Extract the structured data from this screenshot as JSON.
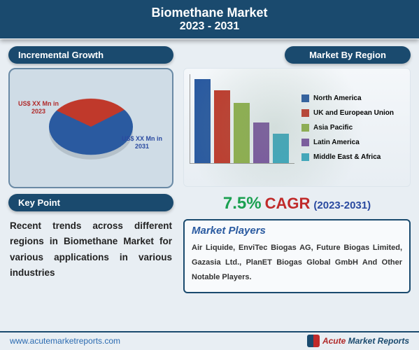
{
  "header": {
    "title": "Biomethane Market",
    "years": "2023 - 2031"
  },
  "left": {
    "growth_banner": "Incremental Growth",
    "pie": {
      "slice_a": {
        "label": "US$ XX Mn in 2023",
        "color": "#c0392b",
        "pct": 30
      },
      "slice_b": {
        "label": "US$ XX Mn in 2031",
        "color": "#2a5aa0",
        "pct": 70
      },
      "rotation_deg": -55
    },
    "keypoint_banner": "Key Point",
    "keypoint_text": "Recent trends across different regions in Biomethane Market for various applications in various industries"
  },
  "right": {
    "region_banner": "Market By Region",
    "chart": {
      "type": "bar",
      "bars": [
        {
          "label": "North America",
          "value": 120,
          "color": "#2a5aa0"
        },
        {
          "label": "UK and European Union",
          "value": 104,
          "color": "#c0392b"
        },
        {
          "label": "Asia Pacific",
          "value": 86,
          "color": "#8fb04a"
        },
        {
          "label": "Latin America",
          "value": 58,
          "color": "#7a52a0"
        },
        {
          "label": "Middle East & Africa",
          "value": 42,
          "color": "#3aa8c0"
        }
      ],
      "legend_colors": {
        "na": "#2a5aa0",
        "eu": "#c0392b",
        "ap": "#8fb04a",
        "la": "#7a52a0",
        "me": "#3aa8c0"
      }
    },
    "cagr": {
      "value": "7.5%",
      "word": "CAGR",
      "years": "(2023-2031)"
    },
    "players": {
      "title": "Market Players",
      "body": "Air Liquide, EnviTec Biogas AG, Future Biogas Limited, Gazasia Ltd., PlanET Biogas Global GmbH And Other Notable Players."
    }
  },
  "footer": {
    "url": "www.acutemarketreports.com",
    "logo_a": "Acute",
    "logo_b": " Market Reports"
  },
  "colors": {
    "header_bg": "#1a4a6e",
    "page_bg": "#e8eef3",
    "box_border": "#6a8aa5"
  }
}
